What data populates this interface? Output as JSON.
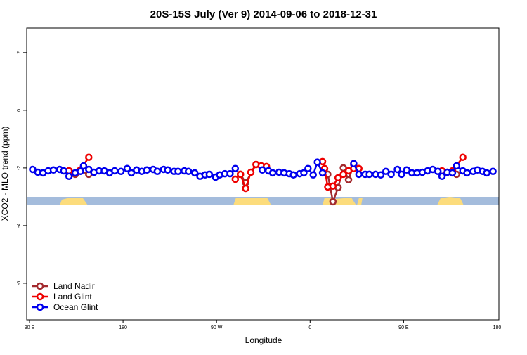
{
  "chart_data": {
    "type": "line",
    "title": "20S-15S July (Ver 9)   2014-09-06 to 2018-12-31",
    "x_label": "Longitude",
    "y_label": "XCO2 - MLO trend (ppm)",
    "xlim": [
      87.3,
      541.7
    ],
    "ylim": [
      -7.27,
      2.85
    ],
    "xticks": [
      {
        "value": 90,
        "label": "90 E"
      },
      180,
      {
        "value": 270,
        "label": "90 W"
      },
      {
        "value": 360,
        "label": "0"
      },
      {
        "value": 450,
        "label": "90 E"
      },
      {
        "value": 540,
        "label": "180"
      }
    ],
    "yticks": [
      -6,
      -4,
      -2,
      0,
      2
    ],
    "legend": "bottom-left",
    "series": [
      {
        "name": "Land Nadir",
        "color": "#a32a2e",
        "x": [
          128,
          134,
          139,
          147,
          null,
          293,
          298,
          308,
          null,
          377,
          382,
          387,
          392,
          397,
          402,
          null,
          501
        ],
        "values": [
          -2.1,
          -2.22,
          -2.1,
          -2.22,
          null,
          -2.22,
          -2.51,
          -1.88,
          null,
          -2.22,
          -3.17,
          -2.68,
          -2.0,
          -2.41,
          -1.88,
          null,
          -2.22
        ]
      },
      {
        "name": "Land Glint",
        "color": "#ee0000",
        "x": [
          128,
          134,
          139,
          147,
          null,
          288,
          293,
          298,
          303,
          308,
          313,
          318,
          null,
          372,
          374,
          377,
          382,
          387,
          392,
          397,
          402,
          407,
          null,
          487,
          492,
          497,
          507
        ],
        "values": [
          -2.1,
          -2.17,
          -2.07,
          -1.63,
          null,
          -2.39,
          -2.22,
          -2.71,
          -2.15,
          -1.88,
          -1.93,
          -1.95,
          null,
          -1.78,
          -2.02,
          -2.66,
          -2.63,
          -2.34,
          -2.22,
          -2.1,
          -2.02,
          -2.02,
          null,
          -2.1,
          -2.15,
          -2.1,
          -1.63
        ]
      },
      {
        "name": "Ocean Glint",
        "color": "#0000ee",
        "x": [
          93,
          98,
          103,
          108,
          113,
          119,
          123,
          128,
          134,
          139,
          142,
          147,
          152,
          157,
          162,
          167,
          172,
          178,
          184,
          188,
          193,
          198,
          203,
          209,
          213,
          219,
          223,
          229,
          233,
          239,
          243,
          249,
          254,
          259,
          263,
          269,
          273,
          278,
          283,
          288,
          null,
          314,
          320,
          324,
          330,
          335,
          340,
          344,
          350,
          354,
          358,
          363,
          367,
          372,
          null,
          402,
          407,
          413,
          417,
          423,
          428,
          433,
          438,
          444,
          448,
          453,
          458,
          463,
          468,
          473,
          478,
          483,
          487,
          492,
          497,
          501,
          507,
          511,
          517,
          521,
          526,
          530,
          536
        ],
        "values": [
          -2.05,
          -2.15,
          -2.17,
          -2.1,
          -2.07,
          -2.05,
          -2.1,
          -2.29,
          -2.17,
          -2.12,
          -1.93,
          -2.05,
          -2.15,
          -2.1,
          -2.1,
          -2.17,
          -2.1,
          -2.12,
          -2.02,
          -2.17,
          -2.07,
          -2.12,
          -2.07,
          -2.05,
          -2.12,
          -2.05,
          -2.07,
          -2.12,
          -2.12,
          -2.1,
          -2.12,
          -2.17,
          -2.29,
          -2.24,
          -2.22,
          -2.32,
          -2.24,
          -2.2,
          -2.2,
          -2.02,
          null,
          -2.07,
          -2.1,
          -2.17,
          -2.15,
          -2.17,
          -2.2,
          -2.24,
          -2.2,
          -2.17,
          -2.02,
          -2.24,
          -1.8,
          -2.17,
          null,
          -1.85,
          -2.22,
          -2.22,
          -2.22,
          -2.22,
          -2.24,
          -2.12,
          -2.22,
          -2.05,
          -2.22,
          -2.07,
          -2.17,
          -2.17,
          -2.15,
          -2.1,
          -2.05,
          -2.12,
          -2.29,
          -2.15,
          -2.17,
          -1.93,
          -2.1,
          -2.17,
          -2.12,
          -2.07,
          -2.12,
          -2.17,
          -2.12
        ]
      }
    ]
  }
}
